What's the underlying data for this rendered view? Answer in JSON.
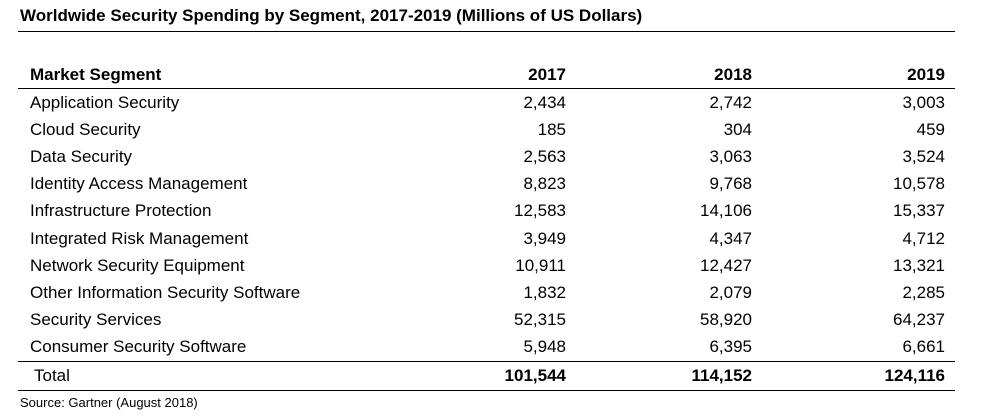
{
  "title": "Worldwide Security Spending by Segment, 2017-2019 (Millions of US Dollars)",
  "source": "Source: Gartner (August 2018)",
  "chart_data": {
    "type": "table",
    "title": "Worldwide Security Spending by Segment, 2017-2019 (Millions of US Dollars)",
    "columns": [
      "Market Segment",
      "2017",
      "2018",
      "2019"
    ],
    "rows": [
      [
        "Application Security",
        "2,434",
        "2,742",
        "3,003"
      ],
      [
        "Cloud Security",
        "185",
        "304",
        "459"
      ],
      [
        "Data Security",
        "2,563",
        "3,063",
        "3,524"
      ],
      [
        "Identity Access Management",
        "8,823",
        "9,768",
        "10,578"
      ],
      [
        "Infrastructure Protection",
        "12,583",
        "14,106",
        "15,337"
      ],
      [
        "Integrated Risk Management",
        "3,949",
        "4,347",
        "4,712"
      ],
      [
        "Network Security Equipment",
        "10,911",
        "12,427",
        "13,321"
      ],
      [
        "Other Information Security Software",
        "1,832",
        "2,079",
        "2,285"
      ],
      [
        "Security Services",
        "52,315",
        "58,920",
        "64,237"
      ],
      [
        "Consumer Security Software",
        "5,948",
        "6,395",
        "6,661"
      ]
    ],
    "total": [
      "Total",
      "101,544",
      "114,152",
      "124,116"
    ]
  }
}
